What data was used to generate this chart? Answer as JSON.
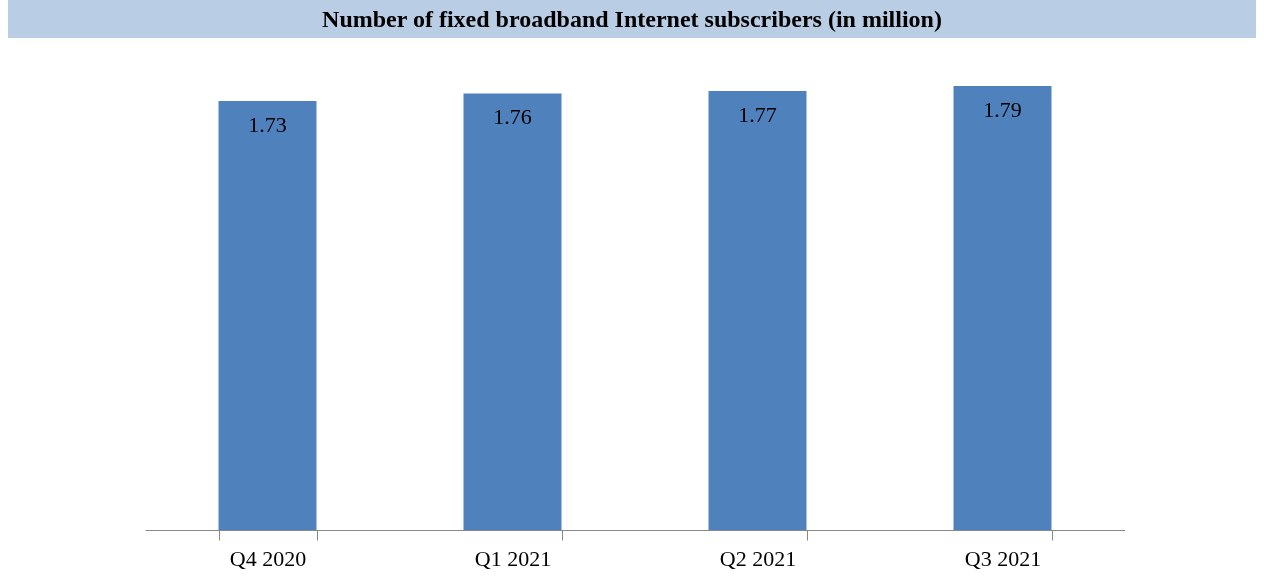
{
  "chart_data": {
    "type": "bar",
    "title": "Number of fixed broadband Internet subscribers (in million)",
    "categories": [
      "Q4 2020",
      "Q1 2021",
      "Q2 2021",
      "Q3 2021"
    ],
    "values": [
      1.73,
      1.76,
      1.77,
      1.79
    ],
    "color": "#4f81bd",
    "data_labels": true
  }
}
